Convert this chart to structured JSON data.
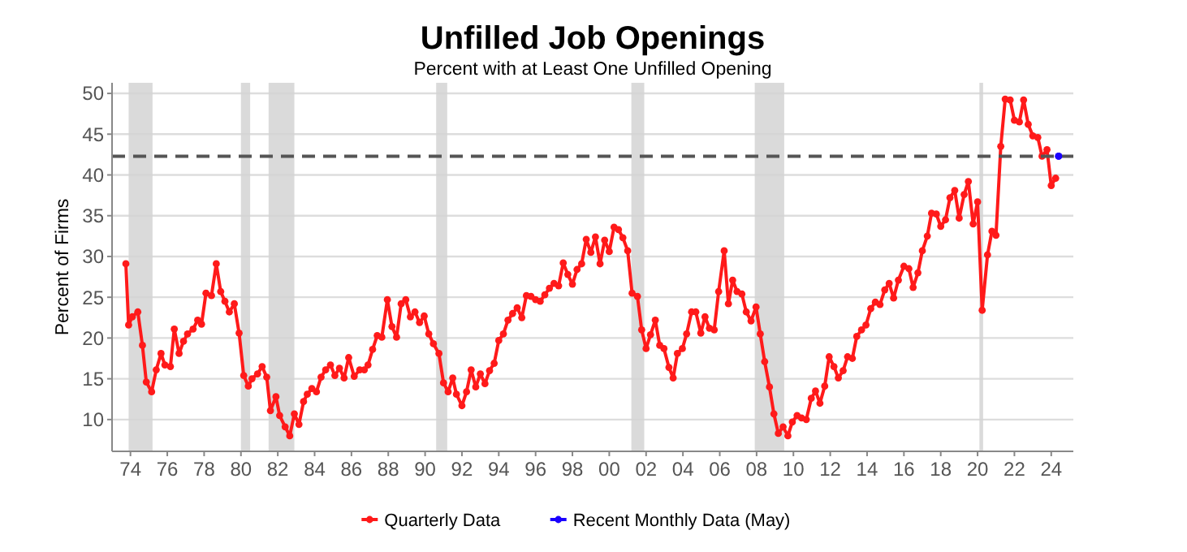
{
  "chart_data": {
    "type": "line",
    "title": "Unfilled Job Openings",
    "subtitle": "Percent with at Least One Unfilled Opening",
    "ylabel": "Percent of Firms",
    "xlim": [
      1973,
      2025.2
    ],
    "ylim": [
      6.1,
      51.3
    ],
    "xticks": [
      {
        "value": 1974,
        "label": "74"
      },
      {
        "value": 1976,
        "label": "76"
      },
      {
        "value": 1978,
        "label": "78"
      },
      {
        "value": 1980,
        "label": "80"
      },
      {
        "value": 1982,
        "label": "82"
      },
      {
        "value": 1984,
        "label": "84"
      },
      {
        "value": 1986,
        "label": "86"
      },
      {
        "value": 1988,
        "label": "88"
      },
      {
        "value": 1990,
        "label": "90"
      },
      {
        "value": 1992,
        "label": "92"
      },
      {
        "value": 1994,
        "label": "94"
      },
      {
        "value": 1996,
        "label": "96"
      },
      {
        "value": 1998,
        "label": "98"
      },
      {
        "value": 2000,
        "label": "00"
      },
      {
        "value": 2002,
        "label": "02"
      },
      {
        "value": 2004,
        "label": "04"
      },
      {
        "value": 2006,
        "label": "06"
      },
      {
        "value": 2008,
        "label": "08"
      },
      {
        "value": 2010,
        "label": "10"
      },
      {
        "value": 2012,
        "label": "12"
      },
      {
        "value": 2014,
        "label": "14"
      },
      {
        "value": 2016,
        "label": "16"
      },
      {
        "value": 2018,
        "label": "18"
      },
      {
        "value": 2020,
        "label": "20"
      },
      {
        "value": 2022,
        "label": "22"
      },
      {
        "value": 2024,
        "label": "24"
      }
    ],
    "yticks": [
      10,
      15,
      20,
      25,
      30,
      35,
      40,
      45,
      50
    ],
    "grid": "y",
    "legend": "bottom",
    "marker": "circle",
    "line_style": "solid",
    "ref_lines": [
      {
        "axis": "y",
        "value": 42.3,
        "color": "#555555",
        "line_style": "dashed"
      }
    ],
    "bands": [
      {
        "axis": "x",
        "from": 1973.9,
        "to": 1975.2,
        "color": "#d3d3d3"
      },
      {
        "axis": "x",
        "from": 1980.0,
        "to": 1980.5,
        "color": "#d3d3d3"
      },
      {
        "axis": "x",
        "from": 1981.5,
        "to": 1982.9,
        "color": "#d3d3d3"
      },
      {
        "axis": "x",
        "from": 1990.6,
        "to": 1991.2,
        "color": "#d3d3d3"
      },
      {
        "axis": "x",
        "from": 2001.2,
        "to": 2001.9,
        "color": "#d3d3d3"
      },
      {
        "axis": "x",
        "from": 2007.9,
        "to": 2009.5,
        "color": "#d3d3d3"
      },
      {
        "axis": "x",
        "from": 2020.1,
        "to": 2020.3,
        "color": "#d3d3d3"
      }
    ],
    "series": [
      {
        "name": "Quarterly Data",
        "color": "#ff1a1a",
        "x": [
          1973.75,
          1973.9,
          1974.1,
          1974.4,
          1974.65,
          1974.86,
          1975.15,
          1975.4,
          1975.66,
          1975.87,
          1976.17,
          1976.38,
          1976.64,
          1976.88,
          1977.1,
          1977.4,
          1977.65,
          1977.86,
          1978.1,
          1978.4,
          1978.66,
          1978.9,
          1979.13,
          1979.37,
          1979.64,
          1979.9,
          1980.15,
          1980.4,
          1980.6,
          1980.9,
          1981.15,
          1981.4,
          1981.6,
          1981.9,
          1982.1,
          1982.4,
          1982.65,
          1982.9,
          1983.15,
          1983.4,
          1983.6,
          1983.85,
          1984.1,
          1984.35,
          1984.6,
          1984.86,
          1985.1,
          1985.35,
          1985.6,
          1985.85,
          1986.15,
          1986.45,
          1986.7,
          1986.9,
          1987.15,
          1987.4,
          1987.65,
          1987.95,
          1988.2,
          1988.45,
          1988.7,
          1988.95,
          1989.2,
          1989.45,
          1989.7,
          1989.95,
          1990.2,
          1990.45,
          1990.75,
          1991.0,
          1991.25,
          1991.5,
          1991.7,
          1992.0,
          1992.25,
          1992.5,
          1992.75,
          1993.0,
          1993.25,
          1993.5,
          1993.75,
          1994.0,
          1994.25,
          1994.5,
          1994.75,
          1995.0,
          1995.25,
          1995.5,
          1995.75,
          1996.0,
          1996.25,
          1996.5,
          1996.75,
          1997.0,
          1997.25,
          1997.5,
          1997.75,
          1998.0,
          1998.25,
          1998.5,
          1998.75,
          1999.0,
          1999.25,
          1999.5,
          1999.75,
          2000.0,
          2000.26,
          2000.5,
          2000.74,
          2001.0,
          2001.24,
          2001.53,
          2001.76,
          2002.0,
          2002.24,
          2002.5,
          2002.74,
          2002.97,
          2003.24,
          2003.47,
          2003.7,
          2003.97,
          2004.2,
          2004.47,
          2004.7,
          2004.97,
          2005.2,
          2005.44,
          2005.7,
          2005.94,
          2006.24,
          2006.47,
          2006.7,
          2006.94,
          2007.2,
          2007.44,
          2007.7,
          2007.97,
          2008.2,
          2008.44,
          2008.7,
          2008.94,
          2009.18,
          2009.44,
          2009.7,
          2009.94,
          2010.2,
          2010.44,
          2010.7,
          2010.97,
          2011.2,
          2011.44,
          2011.7,
          2011.94,
          2012.2,
          2012.44,
          2012.7,
          2012.94,
          2013.2,
          2013.44,
          2013.7,
          2013.94,
          2014.2,
          2014.45,
          2014.7,
          2014.96,
          2015.2,
          2015.44,
          2015.7,
          2016.0,
          2016.27,
          2016.5,
          2016.76,
          2017.0,
          2017.27,
          2017.5,
          2017.76,
          2018.0,
          2018.26,
          2018.5,
          2018.76,
          2019.0,
          2019.27,
          2019.5,
          2019.76,
          2020.0,
          2020.25,
          2020.54,
          2020.78,
          2021.0,
          2021.26,
          2021.5,
          2021.77,
          2022.0,
          2022.27,
          2022.5,
          2022.75,
          2023.0,
          2023.27,
          2023.5,
          2023.77,
          2024.0,
          2024.24
        ],
        "values": [
          29.1,
          21.6,
          22.6,
          23.2,
          19.1,
          14.6,
          13.4,
          16.1,
          18.1,
          16.7,
          16.5,
          21.1,
          18.1,
          19.6,
          20.5,
          21.1,
          22.2,
          21.7,
          25.5,
          25.2,
          29.1,
          25.7,
          24.5,
          23.2,
          24.2,
          20.6,
          15.4,
          14.1,
          15.0,
          15.6,
          16.5,
          15.2,
          11.1,
          12.8,
          10.5,
          9.1,
          8.0,
          10.7,
          9.4,
          12.2,
          13.1,
          13.8,
          13.4,
          15.2,
          16.1,
          16.7,
          15.4,
          16.3,
          15.1,
          17.6,
          15.3,
          16.1,
          16.1,
          16.7,
          18.6,
          20.3,
          20.1,
          24.7,
          21.4,
          20.1,
          24.2,
          24.7,
          22.6,
          23.2,
          21.9,
          22.7,
          20.5,
          19.3,
          18.1,
          14.5,
          13.4,
          15.1,
          13.1,
          11.7,
          13.4,
          16.1,
          14.0,
          15.6,
          14.4,
          16.0,
          16.9,
          19.7,
          20.5,
          22.2,
          23.0,
          23.7,
          22.5,
          25.2,
          25.1,
          24.7,
          24.5,
          25.3,
          26.1,
          26.7,
          26.4,
          29.2,
          27.8,
          26.6,
          28.4,
          29.1,
          32.1,
          30.5,
          32.4,
          29.1,
          32.0,
          30.6,
          33.6,
          33.3,
          32.3,
          30.7,
          25.5,
          25.1,
          21.0,
          18.7,
          20.4,
          22.2,
          19.1,
          18.7,
          16.4,
          15.1,
          18.1,
          18.7,
          20.5,
          23.2,
          23.2,
          20.6,
          22.6,
          21.2,
          21.0,
          25.7,
          30.7,
          24.2,
          27.1,
          25.7,
          25.4,
          23.2,
          22.1,
          23.8,
          20.5,
          17.1,
          14.0,
          10.7,
          8.3,
          9.1,
          8.0,
          9.7,
          10.5,
          10.2,
          10.0,
          12.6,
          13.5,
          12.0,
          14.1,
          17.7,
          16.5,
          15.1,
          16.0,
          17.7,
          17.5,
          20.2,
          21.0,
          21.6,
          23.6,
          24.4,
          24.1,
          25.9,
          26.7,
          24.9,
          27.1,
          28.8,
          28.5,
          26.2,
          28.0,
          30.7,
          32.5,
          35.3,
          35.2,
          33.7,
          34.5,
          37.2,
          38.1,
          34.7,
          37.6,
          39.2,
          34.0,
          36.7,
          23.4,
          30.2,
          33.1,
          32.6,
          43.5,
          49.3,
          49.2,
          46.7,
          46.5,
          49.2,
          46.2,
          44.8,
          44.6,
          42.3,
          43.1,
          38.7,
          39.6
        ]
      },
      {
        "name": "Recent Monthly Data (May)",
        "color": "#1a00ff",
        "x": [
          2024.4
        ],
        "values": [
          42.3
        ]
      }
    ]
  }
}
